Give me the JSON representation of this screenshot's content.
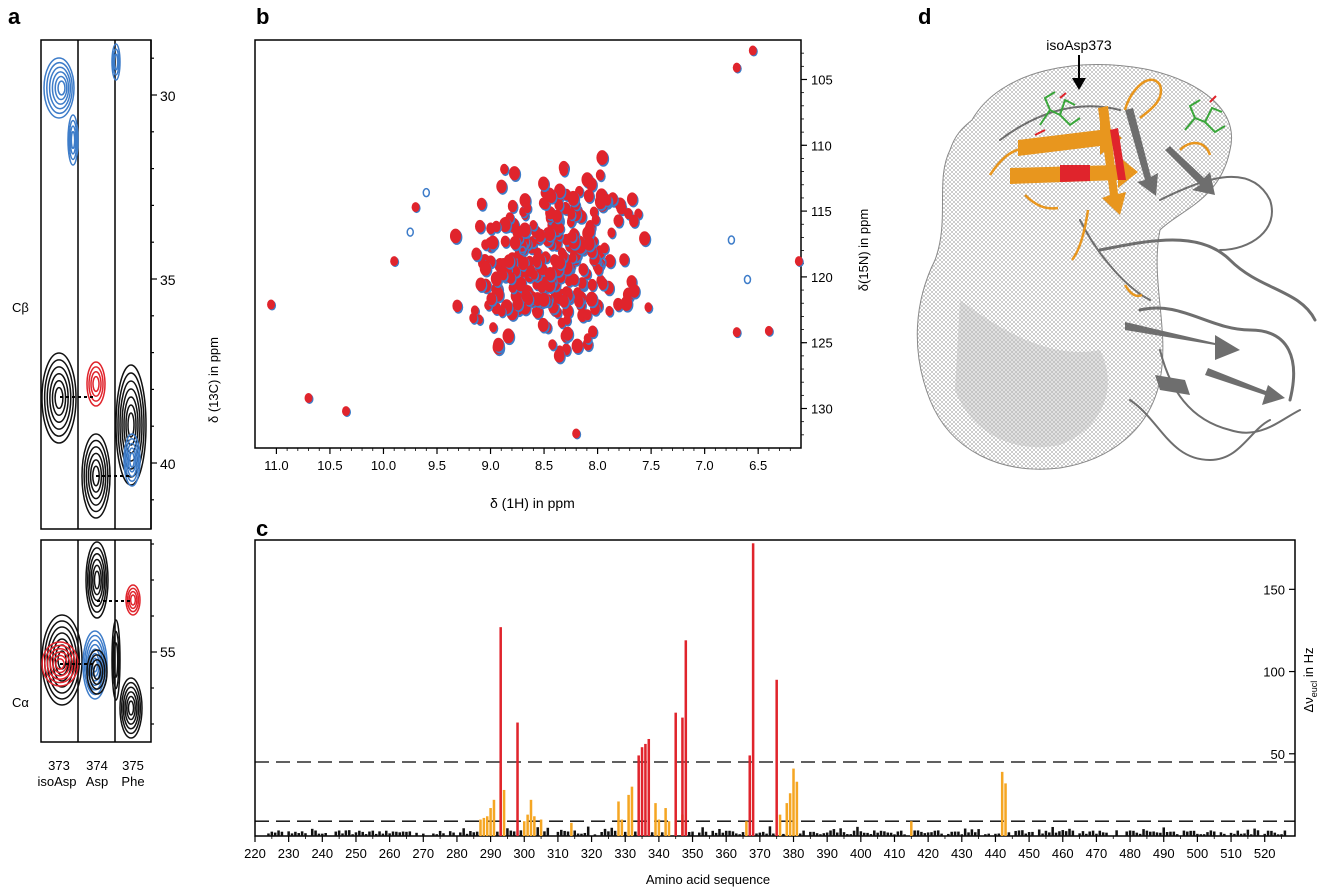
{
  "panels": {
    "a": "a",
    "b": "b",
    "c": "c",
    "d": "d"
  },
  "panel_a": {
    "y_axis_label": "δ (13C) in ppm",
    "cb_ticks": [
      "30",
      "35",
      "40"
    ],
    "ca_ticks": [
      "55"
    ],
    "row_cb": "Cβ",
    "row_ca": "Cα",
    "strip_numbers": [
      "373",
      "374",
      "375"
    ],
    "strip_names": [
      "isoAsp",
      "Asp",
      "Phe"
    ]
  },
  "panel_b": {
    "x_axis_label": "δ (1H) in ppm",
    "y_axis_label": "δ(15N) in ppm",
    "x_ticks": [
      "11.0",
      "10.5",
      "10.0",
      "9.5",
      "9.0",
      "8.5",
      "8.0",
      "7.5",
      "7.0",
      "6.5"
    ],
    "y_ticks": [
      "105",
      "110",
      "115",
      "120",
      "125",
      "130"
    ]
  },
  "panel_d": {
    "annotation": "isoAsp373",
    "colors": {
      "surface": "#a8a8a8",
      "ribbon": "#707070",
      "orange": "#e8961e",
      "red": "#e0242c",
      "green": "#3aa63a"
    }
  },
  "colors": {
    "red": "#e0242c",
    "blue": "#3d7cc9",
    "orange": "#f5a623",
    "black": "#111111"
  },
  "chart_data": [
    {
      "type": "scatter",
      "panel": "b",
      "xlabel": "δ (1H) in ppm",
      "ylabel": "δ(15N) in ppm",
      "xlim": [
        11.2,
        6.1
      ],
      "ylim": [
        133,
        102
      ],
      "x_scale": "reversed",
      "y_scale": "reversed",
      "seed": 7,
      "n_peaks": 300,
      "grid": false
    },
    {
      "type": "bar",
      "panel": "c",
      "xlabel": "Amino acid sequence",
      "ylabel": "Δνeucl in Hz",
      "xlim": [
        220,
        529
      ],
      "ylim": [
        0,
        180
      ],
      "x_ticks": [
        "220",
        "230",
        "240",
        "250",
        "260",
        "270",
        "280",
        "290",
        "300",
        "310",
        "320",
        "330",
        "340",
        "350",
        "360",
        "370",
        "380",
        "390",
        "400",
        "410",
        "420",
        "430",
        "440",
        "450",
        "460",
        "470",
        "480",
        "490",
        "500",
        "510",
        "520"
      ],
      "y_ticks": [
        "50",
        "100",
        "150"
      ],
      "thresholds": [
        45,
        9
      ],
      "red_residues": [
        [
          293,
          127
        ],
        [
          298,
          69
        ],
        [
          334,
          49
        ],
        [
          335,
          54
        ],
        [
          336,
          56
        ],
        [
          337,
          59
        ],
        [
          345,
          75
        ],
        [
          347,
          72
        ],
        [
          348,
          119
        ],
        [
          367,
          49
        ],
        [
          368,
          178
        ],
        [
          375,
          95
        ]
      ],
      "orange_residues": [
        [
          287,
          10
        ],
        [
          288,
          11
        ],
        [
          289,
          12
        ],
        [
          290,
          17
        ],
        [
          291,
          22
        ],
        [
          293,
          42
        ],
        [
          294,
          28
        ],
        [
          300,
          9
        ],
        [
          301,
          13
        ],
        [
          302,
          22
        ],
        [
          303,
          12
        ],
        [
          305,
          10
        ],
        [
          314,
          8
        ],
        [
          328,
          21
        ],
        [
          329,
          10
        ],
        [
          331,
          25
        ],
        [
          332,
          30
        ],
        [
          339,
          20
        ],
        [
          340,
          10
        ],
        [
          342,
          17
        ],
        [
          343,
          9
        ],
        [
          347,
          13
        ],
        [
          366,
          9
        ],
        [
          376,
          13
        ],
        [
          378,
          20
        ],
        [
          379,
          26
        ],
        [
          380,
          41
        ],
        [
          381,
          33
        ],
        [
          415,
          9
        ],
        [
          442,
          39
        ],
        [
          443,
          32
        ]
      ],
      "black_bars_note": "remaining residues ~1-9 Hz",
      "grid": false
    }
  ]
}
